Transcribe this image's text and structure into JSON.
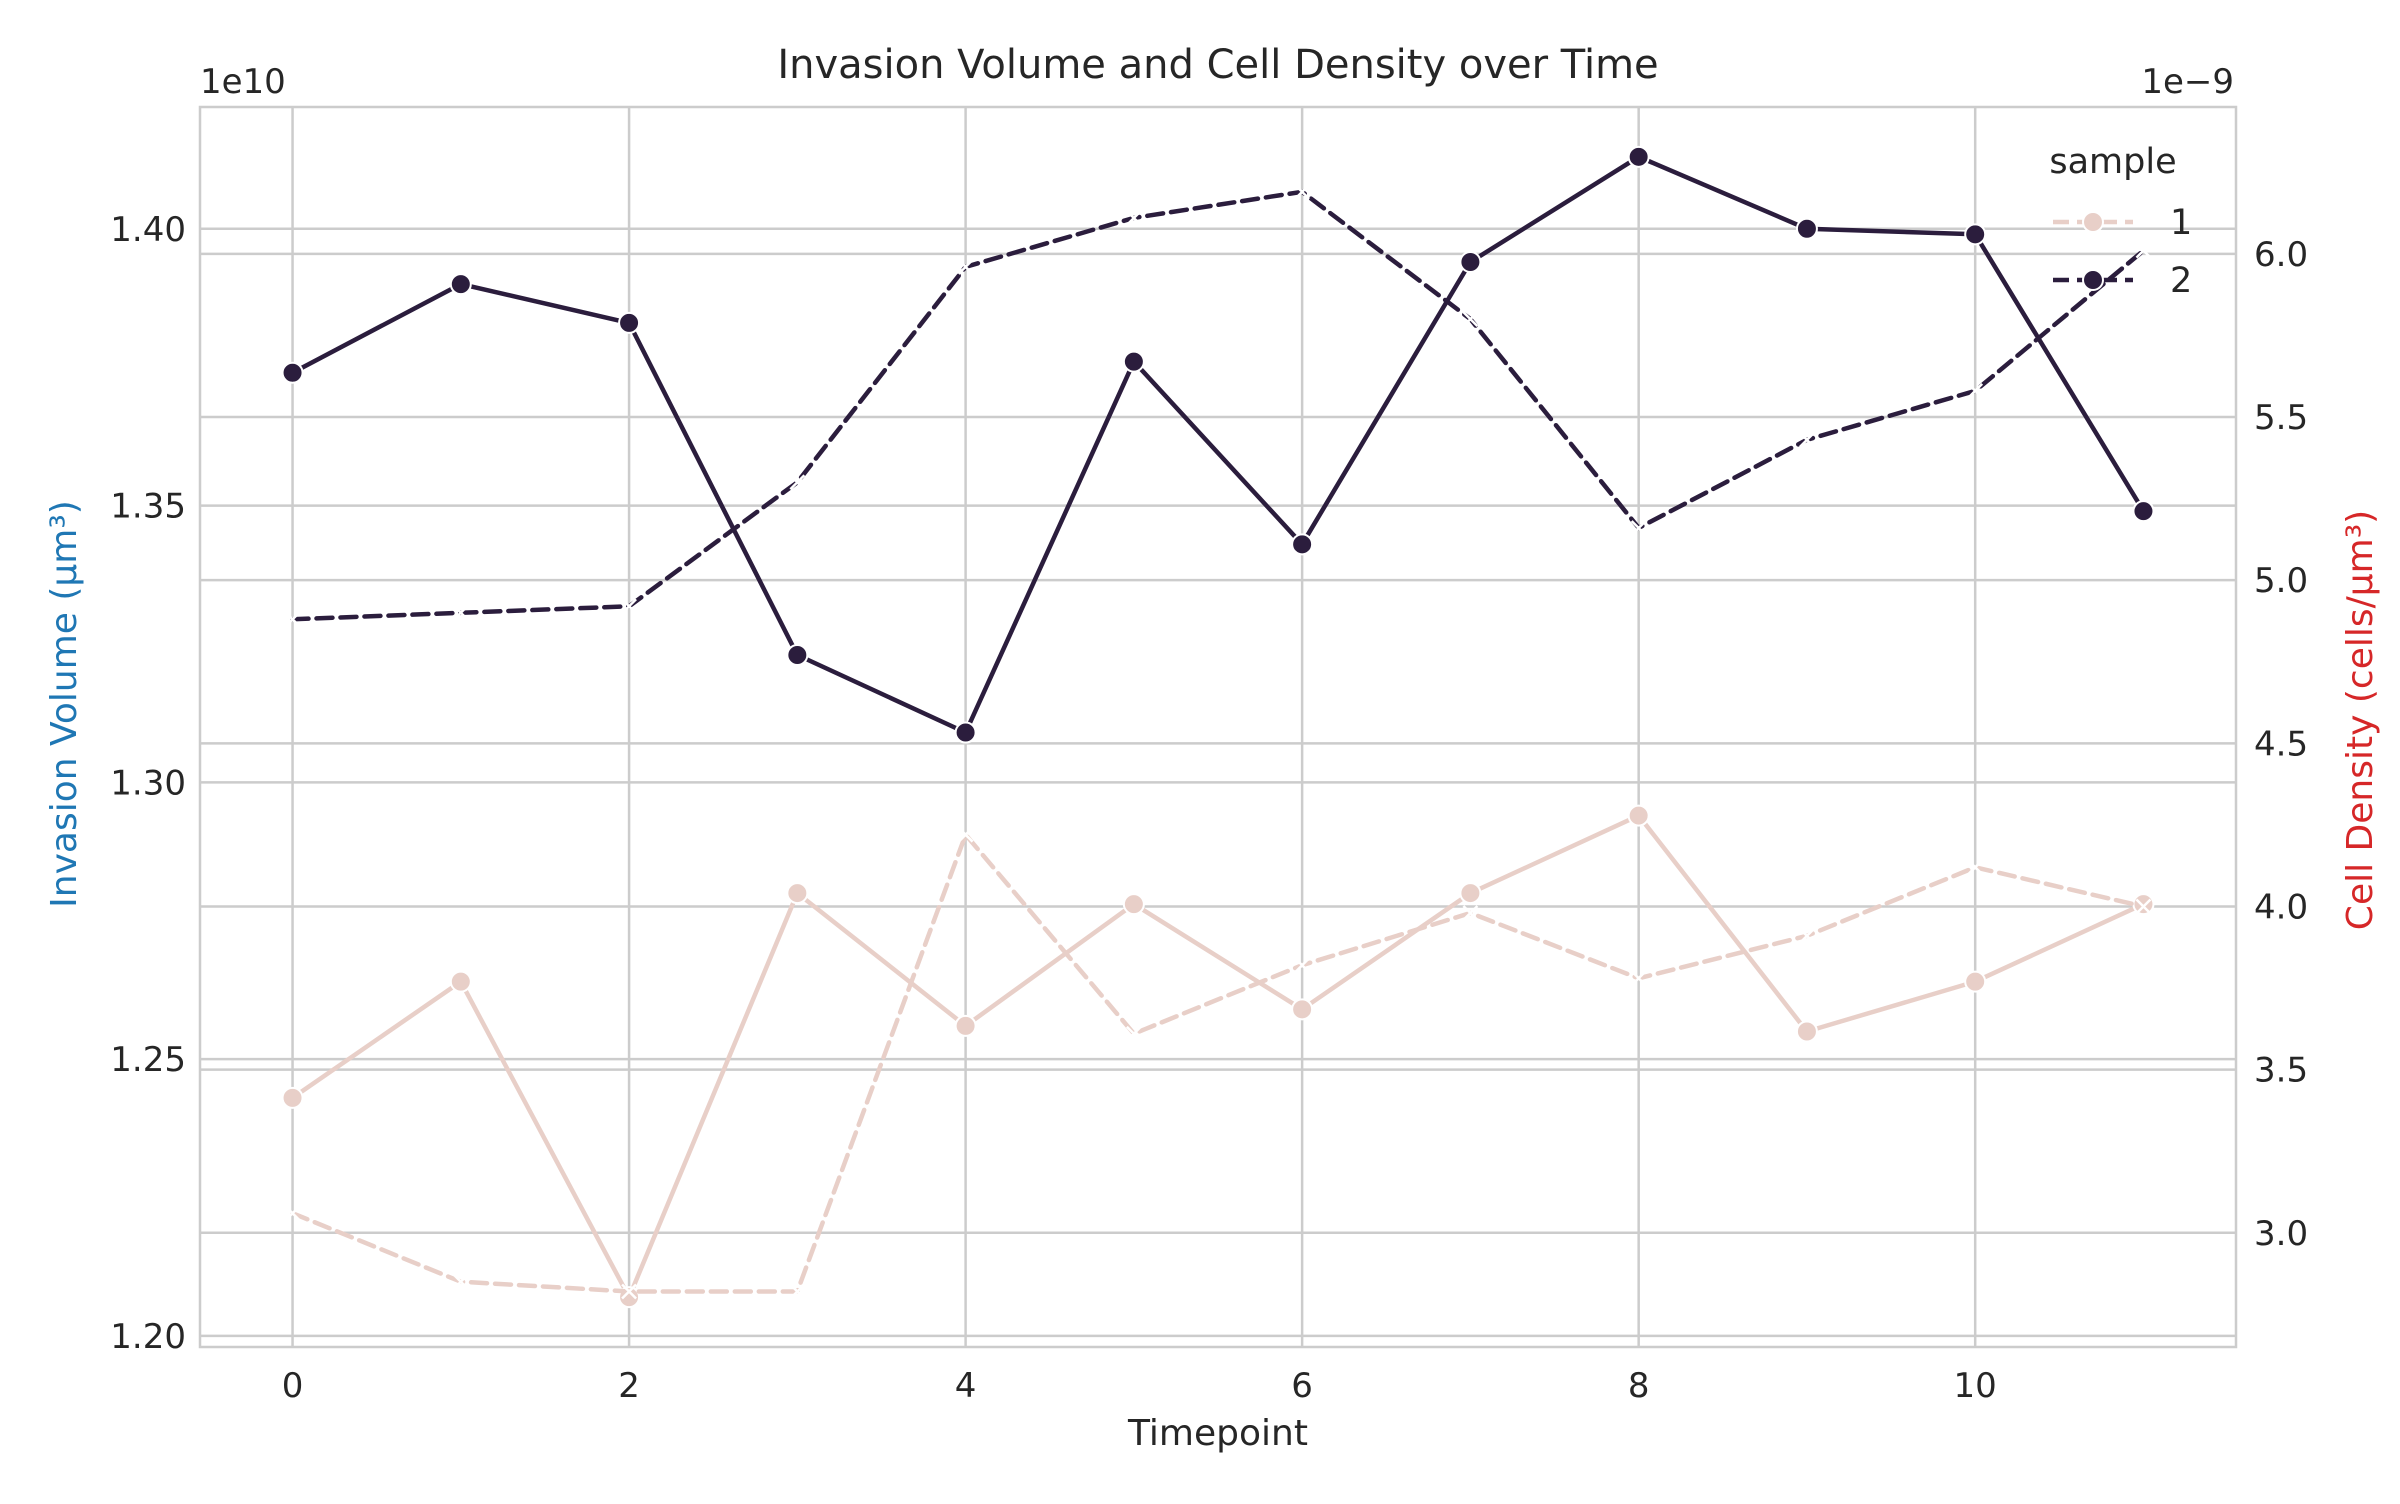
{
  "chart_data": {
    "type": "line",
    "title": "Invasion Volume and Cell Density over Time",
    "xlabel": "Timepoint",
    "x": [
      0,
      1,
      2,
      3,
      4,
      5,
      6,
      7,
      8,
      9,
      10,
      11
    ],
    "xlim": [
      -0.55,
      11.55
    ],
    "xticks": [
      0,
      2,
      4,
      6,
      8,
      10
    ],
    "xtick_labels": [
      "0",
      "2",
      "4",
      "6",
      "8",
      "10"
    ],
    "grid": true,
    "left_axis": {
      "label": "Invasion Volume (µm³)",
      "label_color": "#1f77b4",
      "scale_note": "1e10",
      "ylim": [
        1.198,
        1.422
      ],
      "ticks": [
        1.2,
        1.25,
        1.3,
        1.35,
        1.4
      ],
      "tick_labels": [
        "1.20",
        "1.25",
        "1.30",
        "1.35",
        "1.40"
      ]
    },
    "right_axis": {
      "label": "Cell Density (cells/µm³)",
      "label_color": "#d62728",
      "scale_note": "1e−9",
      "ylim": [
        2.65,
        6.45
      ],
      "ticks": [
        3.0,
        3.5,
        4.0,
        4.5,
        5.0,
        5.5,
        6.0
      ],
      "tick_labels": [
        "3.0",
        "3.5",
        "4.0",
        "4.5",
        "5.0",
        "5.5",
        "6.0"
      ]
    },
    "legend": {
      "title": "sample",
      "placement": "top-right",
      "entries": [
        {
          "label": "1",
          "color": "#e8cfc8"
        },
        {
          "label": "2",
          "color": "#2b1d3d"
        }
      ]
    },
    "series": [
      {
        "name": "1",
        "axis": "left",
        "style": "solid",
        "marker": "circle",
        "color": "#e8cfc8",
        "values": [
          1.243,
          1.264,
          1.207,
          1.28,
          1.256,
          1.278,
          1.259,
          1.28,
          1.294,
          1.255,
          1.264,
          1.278
        ]
      },
      {
        "name": "2",
        "axis": "left",
        "style": "solid",
        "marker": "circle",
        "color": "#2b1d3d",
        "values": [
          1.374,
          1.39,
          1.383,
          1.323,
          1.309,
          1.376,
          1.343,
          1.394,
          1.413,
          1.4,
          1.399,
          1.349
        ]
      },
      {
        "name": "1",
        "axis": "right",
        "style": "dashed",
        "marker": "x",
        "color": "#e8cfc8",
        "values": [
          3.06,
          2.85,
          2.82,
          2.82,
          4.22,
          3.61,
          3.82,
          3.98,
          3.78,
          3.91,
          4.12,
          4.0
        ]
      },
      {
        "name": "2",
        "axis": "right",
        "style": "dashed",
        "marker": "x",
        "color": "#2b1d3d",
        "values": [
          4.88,
          4.9,
          4.92,
          5.3,
          5.96,
          6.11,
          6.19,
          5.8,
          5.16,
          5.43,
          5.58,
          6.01
        ]
      }
    ]
  }
}
